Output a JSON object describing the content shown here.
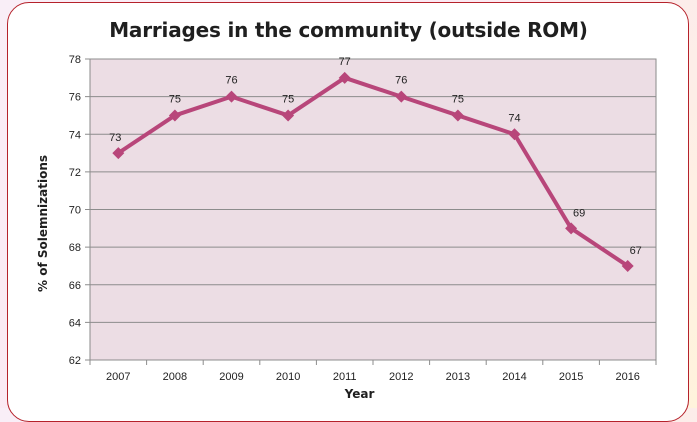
{
  "chart_data": {
    "type": "line",
    "title": "Marriages in the community (outside ROM)",
    "xlabel": "Year",
    "ylabel": "% of Solemnizations",
    "categories": [
      "2007",
      "2008",
      "2009",
      "2010",
      "2011",
      "2012",
      "2013",
      "2014",
      "2015",
      "2016"
    ],
    "series": [
      {
        "values": [
          73,
          75,
          76,
          75,
          77,
          76,
          75,
          74,
          69,
          67
        ]
      }
    ],
    "data_labels": [
      "73",
      "75",
      "76",
      "75",
      "77",
      "76",
      "75",
      "74",
      "69",
      "67"
    ],
    "yticks": [
      "62",
      "64",
      "66",
      "68",
      "70",
      "72",
      "74",
      "76",
      "78"
    ],
    "ylim": [
      62,
      78
    ],
    "grid": true,
    "legend": "none",
    "colors": {
      "line": "#b8467a",
      "plot_bg": "#ecdde4",
      "border": "#b5222b"
    }
  }
}
